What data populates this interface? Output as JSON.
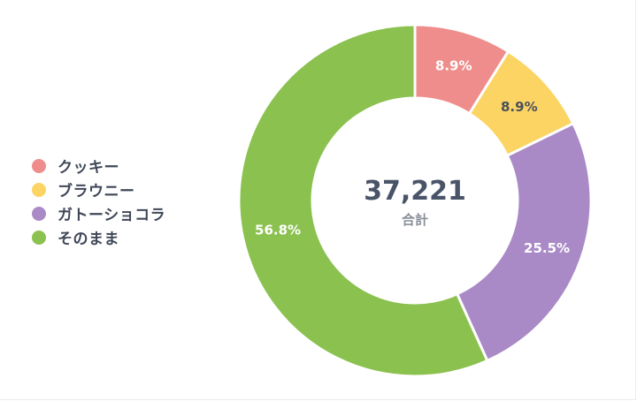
{
  "chart_data": {
    "type": "pie",
    "variant": "donut",
    "categories": [
      "クッキー",
      "ブラウニー",
      "ガトーショコラ",
      "そのまま"
    ],
    "values": [
      8.9,
      8.9,
      25.5,
      56.8
    ],
    "value_labels": [
      "8.9%",
      "8.9%",
      "25.5%",
      "56.8%"
    ],
    "colors": [
      "#ef8d8c",
      "#fcd464",
      "#a98ac7",
      "#8bc14f"
    ],
    "label_colors": [
      "#ffffff",
      "#4a4f5c",
      "#ffffff",
      "#ffffff"
    ],
    "legend": {
      "position": "left",
      "items": [
        {
          "label": "クッキー",
          "color": "#ef8d8c"
        },
        {
          "label": "ブラウニー",
          "color": "#fcd464"
        },
        {
          "label": "ガトーショコラ",
          "color": "#a98ac7"
        },
        {
          "label": "そのまま",
          "color": "#8bc14f"
        }
      ]
    },
    "center": {
      "value": "37,221",
      "label": "合計"
    }
  }
}
